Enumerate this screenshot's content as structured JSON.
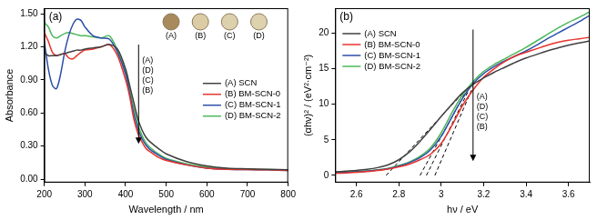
{
  "chart_data": [
    {
      "type": "line",
      "panel_label": "(a)",
      "x_label": "Wavelength / nm",
      "y_label": "Absorbance",
      "xlim": [
        200,
        800
      ],
      "xticks": [
        200,
        300,
        400,
        500,
        600,
        700,
        800
      ],
      "ylim": [
        -0.03,
        1.55
      ],
      "yticks": [
        {
          "value": 0,
          "label": "0.00"
        },
        {
          "value": 0.3,
          "label": "0.30"
        },
        {
          "value": 0.6,
          "label": "0.60"
        },
        {
          "value": 0.9,
          "label": "0.90"
        },
        {
          "value": 1.2,
          "label": "1.20"
        },
        {
          "value": 1.5,
          "label": "1.50"
        }
      ],
      "grid": false,
      "legend": "right",
      "marker": "none",
      "line_style": "solid",
      "x": [
        200,
        210,
        220,
        230,
        240,
        250,
        260,
        270,
        280,
        290,
        300,
        320,
        340,
        360,
        380,
        400,
        410,
        420,
        430,
        440,
        450,
        460,
        480,
        500,
        550,
        600,
        650,
        700,
        750,
        800
      ],
      "series": [
        {
          "name": "(A) SCN",
          "color": "#404040",
          "values": [
            1.15,
            1.12,
            1.12,
            1.12,
            1.13,
            1.14,
            1.15,
            1.16,
            1.17,
            1.17,
            1.18,
            1.19,
            1.2,
            1.22,
            1.18,
            1.0,
            0.85,
            0.7,
            0.55,
            0.45,
            0.38,
            0.34,
            0.28,
            0.23,
            0.16,
            0.12,
            0.1,
            0.095,
            0.09,
            0.085
          ]
        },
        {
          "name": "(B) BM-SCN-0",
          "color": "#e8322c",
          "values": [
            1.33,
            1.25,
            1.15,
            1.12,
            1.13,
            1.14,
            1.1,
            1.09,
            1.12,
            1.15,
            1.17,
            1.18,
            1.2,
            1.22,
            1.12,
            0.9,
            0.75,
            0.55,
            0.42,
            0.34,
            0.28,
            0.25,
            0.2,
            0.17,
            0.13,
            0.1,
            0.09,
            0.088,
            0.085,
            0.08
          ]
        },
        {
          "name": "(C) BM-SCN-1",
          "color": "#2a4fa8",
          "values": [
            1.25,
            1.0,
            0.85,
            0.82,
            0.95,
            1.15,
            1.3,
            1.4,
            1.45,
            1.44,
            1.38,
            1.3,
            1.28,
            1.27,
            1.15,
            0.95,
            0.78,
            0.6,
            0.46,
            0.37,
            0.31,
            0.27,
            0.22,
            0.18,
            0.13,
            0.1,
            0.09,
            0.088,
            0.085,
            0.08
          ]
        },
        {
          "name": "(D) BM-SCN-2",
          "color": "#4cb85a",
          "values": [
            1.42,
            1.38,
            1.3,
            1.28,
            1.3,
            1.32,
            1.33,
            1.32,
            1.31,
            1.3,
            1.3,
            1.29,
            1.28,
            1.3,
            1.17,
            0.98,
            0.82,
            0.65,
            0.5,
            0.4,
            0.33,
            0.29,
            0.23,
            0.19,
            0.14,
            0.11,
            0.095,
            0.09,
            0.087,
            0.083
          ]
        }
      ],
      "arrow_labels": [
        "(A)",
        "(D)",
        "(C)",
        "(B)"
      ],
      "inset_labels": [
        "(A)",
        "(B)",
        "(C)",
        "(D)"
      ]
    },
    {
      "type": "line",
      "panel_label": "(b)",
      "x_label": "hν / eV",
      "y_label": "(αhν)² / (eV²·cm⁻²)",
      "xlim": [
        2.5,
        3.7
      ],
      "xticks": [
        2.6,
        2.8,
        3.0,
        3.2,
        3.4,
        3.6
      ],
      "ylim": [
        -1,
        23.5
      ],
      "yticks": [
        0,
        5,
        10,
        15,
        20
      ],
      "grid": false,
      "legend": "upper left",
      "marker": "none",
      "line_style": "solid",
      "x": [
        2.5,
        2.55,
        2.6,
        2.65,
        2.7,
        2.75,
        2.8,
        2.85,
        2.9,
        2.95,
        3.0,
        3.05,
        3.1,
        3.15,
        3.2,
        3.25,
        3.3,
        3.35,
        3.4,
        3.45,
        3.5,
        3.55,
        3.6,
        3.65,
        3.7
      ],
      "series": [
        {
          "name": "(A) SCN",
          "color": "#404040",
          "values": [
            0.5,
            0.6,
            0.7,
            0.85,
            1.1,
            1.5,
            2.2,
            3.3,
            4.8,
            6.5,
            8.3,
            10.0,
            11.6,
            12.8,
            13.7,
            14.5,
            15.2,
            15.9,
            16.5,
            17.0,
            17.5,
            17.9,
            18.3,
            18.6,
            18.9
          ]
        },
        {
          "name": "(B) BM-SCN-0",
          "color": "#e8322c",
          "values": [
            0.3,
            0.35,
            0.45,
            0.55,
            0.7,
            0.9,
            1.2,
            1.6,
            2.2,
            3.0,
            4.5,
            7.0,
            9.8,
            12.0,
            13.8,
            15.0,
            16.0,
            16.8,
            17.3,
            17.8,
            18.3,
            18.7,
            19.0,
            19.2,
            19.4
          ]
        },
        {
          "name": "(C) BM-SCN-1",
          "color": "#2a4fa8",
          "values": [
            0.35,
            0.4,
            0.5,
            0.6,
            0.75,
            0.95,
            1.3,
            1.8,
            2.5,
            3.6,
            5.5,
            8.2,
            10.8,
            12.9,
            14.3,
            15.3,
            16.1,
            16.8,
            17.5,
            18.3,
            19.2,
            20.0,
            20.8,
            21.6,
            22.5
          ]
        },
        {
          "name": "(D) BM-SCN-2",
          "color": "#4cb85a",
          "values": [
            0.35,
            0.45,
            0.55,
            0.65,
            0.8,
            1.0,
            1.4,
            1.9,
            2.7,
            3.9,
            6.0,
            8.8,
            11.3,
            13.2,
            14.6,
            15.6,
            16.4,
            17.2,
            18.0,
            18.9,
            19.8,
            20.7,
            21.5,
            22.2,
            23.0
          ]
        }
      ],
      "tangent_lines": [
        {
          "x": [
            2.74,
            3.1
          ],
          "values": [
            0,
            11.5
          ],
          "color": "#000000",
          "line_style": "dashed"
        },
        {
          "x": [
            2.9,
            3.12
          ],
          "values": [
            0,
            12
          ],
          "color": "#000000",
          "line_style": "dashed"
        },
        {
          "x": [
            2.93,
            3.13
          ],
          "values": [
            0,
            12
          ],
          "color": "#000000",
          "line_style": "dashed"
        },
        {
          "x": [
            2.97,
            3.15
          ],
          "values": [
            0,
            12.5
          ],
          "color": "#000000",
          "line_style": "dashed"
        }
      ],
      "arrow_labels": [
        "(A)",
        "(D)",
        "(C)",
        "(B)"
      ]
    }
  ]
}
